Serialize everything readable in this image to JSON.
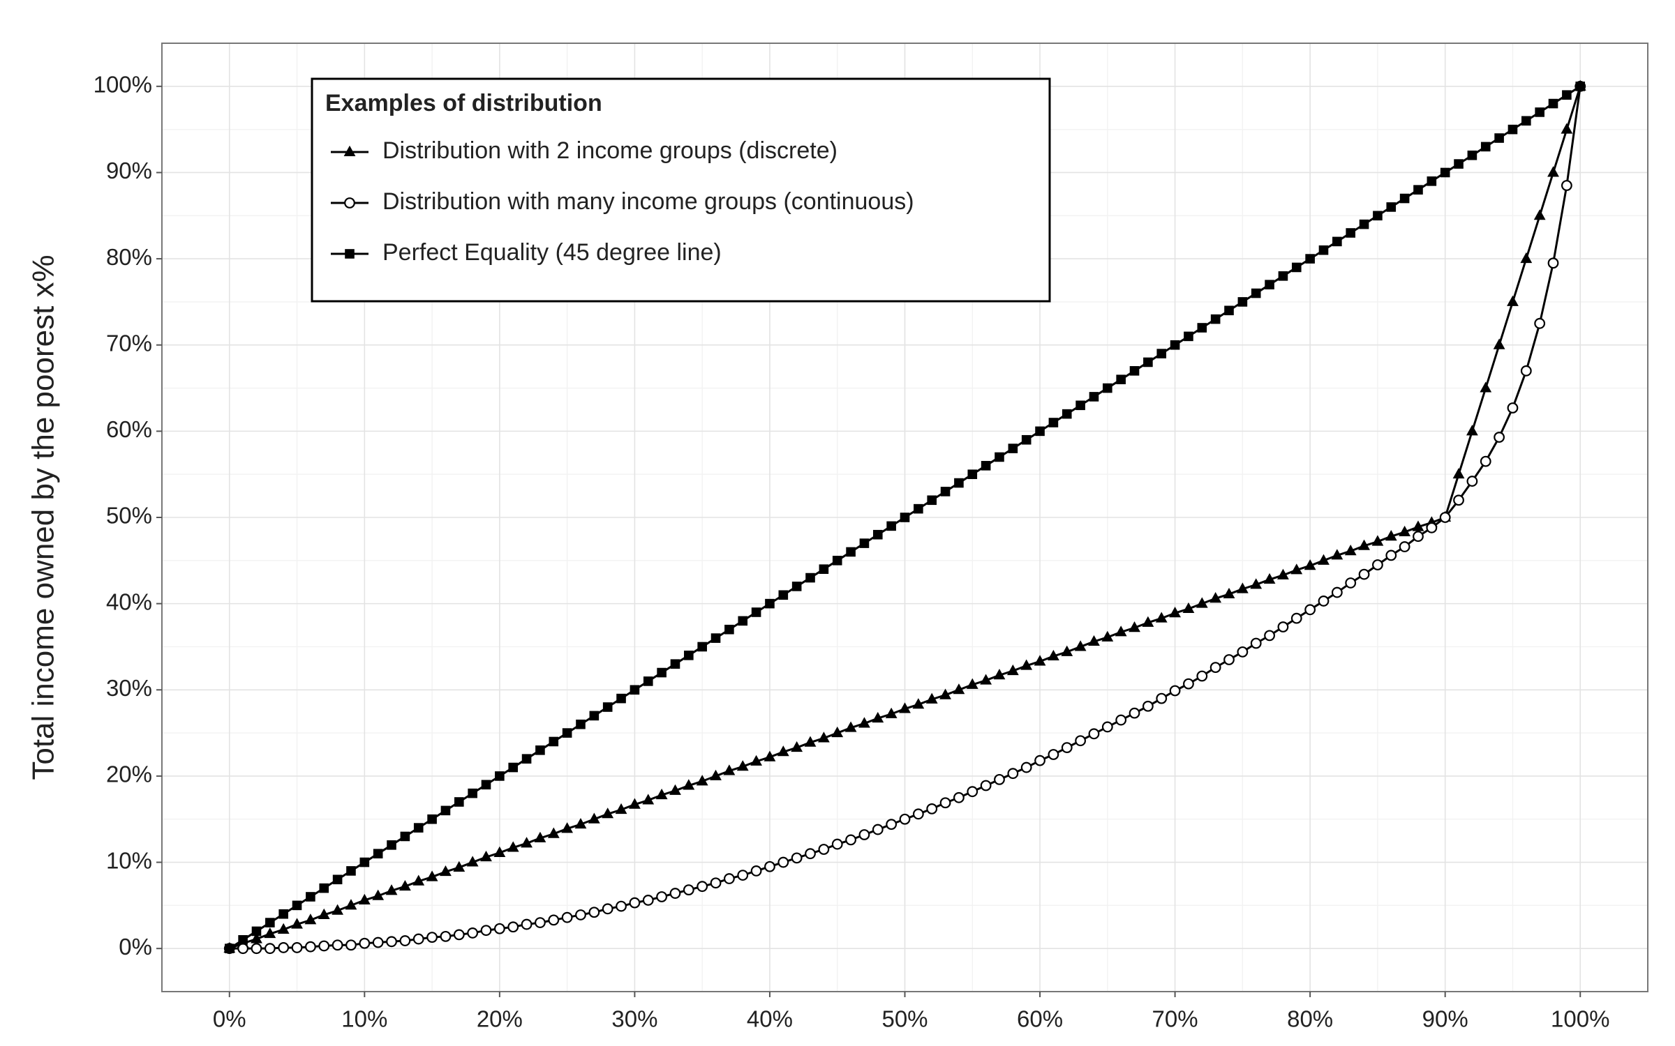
{
  "chart_data": {
    "type": "line",
    "ylabel": "Total income owned by the poorest x%",
    "legend_title": "Examples of distribution",
    "legend_position": "top-left",
    "grid": true,
    "xlim": [
      -5,
      105
    ],
    "ylim": [
      -5,
      105
    ],
    "xticks": [
      {
        "value": 0,
        "label": "0%"
      },
      {
        "value": 10,
        "label": "10%"
      },
      {
        "value": 20,
        "label": "20%"
      },
      {
        "value": 30,
        "label": "30%"
      },
      {
        "value": 40,
        "label": "40%"
      },
      {
        "value": 50,
        "label": "50%"
      },
      {
        "value": 60,
        "label": "60%"
      },
      {
        "value": 70,
        "label": "70%"
      },
      {
        "value": 80,
        "label": "80%"
      },
      {
        "value": 90,
        "label": "90%"
      },
      {
        "value": 100,
        "label": "100%"
      }
    ],
    "yticks": [
      {
        "value": 0,
        "label": "0%"
      },
      {
        "value": 10,
        "label": "10%"
      },
      {
        "value": 20,
        "label": "20%"
      },
      {
        "value": 30,
        "label": "30%"
      },
      {
        "value": 40,
        "label": "40%"
      },
      {
        "value": 50,
        "label": "50%"
      },
      {
        "value": 60,
        "label": "60%"
      },
      {
        "value": 70,
        "label": "70%"
      },
      {
        "value": 80,
        "label": "80%"
      },
      {
        "value": 90,
        "label": "90%"
      },
      {
        "value": 100,
        "label": "100%"
      }
    ],
    "x": [
      0,
      1,
      2,
      3,
      4,
      5,
      6,
      7,
      8,
      9,
      10,
      11,
      12,
      13,
      14,
      15,
      16,
      17,
      18,
      19,
      20,
      21,
      22,
      23,
      24,
      25,
      26,
      27,
      28,
      29,
      30,
      31,
      32,
      33,
      34,
      35,
      36,
      37,
      38,
      39,
      40,
      41,
      42,
      43,
      44,
      45,
      46,
      47,
      48,
      49,
      50,
      51,
      52,
      53,
      54,
      55,
      56,
      57,
      58,
      59,
      60,
      61,
      62,
      63,
      64,
      65,
      66,
      67,
      68,
      69,
      70,
      71,
      72,
      73,
      74,
      75,
      76,
      77,
      78,
      79,
      80,
      81,
      82,
      83,
      84,
      85,
      86,
      87,
      88,
      89,
      90,
      91,
      92,
      93,
      94,
      95,
      96,
      97,
      98,
      99,
      100
    ],
    "series": [
      {
        "name": "Distribution with 2 income groups (discrete)",
        "color": "#000000",
        "marker": "triangle",
        "values": [
          0,
          0.6,
          1.1,
          1.7,
          2.2,
          2.8,
          3.3,
          3.9,
          4.4,
          5,
          5.6,
          6.1,
          6.7,
          7.2,
          7.8,
          8.3,
          8.9,
          9.4,
          10,
          10.6,
          11.1,
          11.7,
          12.2,
          12.8,
          13.3,
          13.9,
          14.4,
          15,
          15.6,
          16.1,
          16.7,
          17.2,
          17.8,
          18.3,
          18.9,
          19.4,
          20,
          20.6,
          21.1,
          21.7,
          22.2,
          22.8,
          23.3,
          23.9,
          24.4,
          25,
          25.6,
          26.1,
          26.7,
          27.2,
          27.8,
          28.3,
          28.9,
          29.4,
          30,
          30.6,
          31.1,
          31.7,
          32.2,
          32.8,
          33.3,
          33.9,
          34.4,
          35,
          35.6,
          36.1,
          36.7,
          37.2,
          37.8,
          38.3,
          38.9,
          39.4,
          40,
          40.6,
          41.1,
          41.7,
          42.2,
          42.8,
          43.3,
          43.9,
          44.4,
          45,
          45.6,
          46.1,
          46.7,
          47.2,
          47.8,
          48.3,
          48.9,
          49.4,
          50,
          55,
          60,
          65,
          70,
          75,
          80,
          85,
          90,
          95,
          100
        ]
      },
      {
        "name": "Distribution with many income groups (continuous)",
        "color": "#000000",
        "marker": "circle",
        "values": [
          0,
          0,
          0,
          0,
          0.1,
          0.1,
          0.2,
          0.3,
          0.4,
          0.4,
          0.6,
          0.7,
          0.8,
          0.9,
          1.1,
          1.3,
          1.4,
          1.6,
          1.8,
          2.1,
          2.3,
          2.5,
          2.8,
          3,
          3.3,
          3.6,
          3.9,
          4.2,
          4.6,
          4.9,
          5.3,
          5.6,
          6,
          6.4,
          6.8,
          7.2,
          7.6,
          8.1,
          8.5,
          9,
          9.5,
          10,
          10.5,
          11,
          11.5,
          12.1,
          12.6,
          13.2,
          13.8,
          14.4,
          15,
          15.6,
          16.2,
          16.9,
          17.5,
          18.2,
          18.9,
          19.6,
          20.3,
          21,
          21.8,
          22.5,
          23.3,
          24.1,
          24.9,
          25.7,
          26.5,
          27.3,
          28.1,
          29,
          29.9,
          30.7,
          31.6,
          32.6,
          33.5,
          34.4,
          35.4,
          36.3,
          37.3,
          38.3,
          39.3,
          40.3,
          41.3,
          42.4,
          43.4,
          44.5,
          45.6,
          46.6,
          47.8,
          48.8,
          50,
          52,
          54.2,
          56.5,
          59.3,
          62.7,
          67,
          72.5,
          79.5,
          88.5,
          100
        ]
      },
      {
        "name": "Perfect Equality (45 degree line)",
        "color": "#000000",
        "marker": "square",
        "values": [
          0,
          1,
          2,
          3,
          4,
          5,
          6,
          7,
          8,
          9,
          10,
          11,
          12,
          13,
          14,
          15,
          16,
          17,
          18,
          19,
          20,
          21,
          22,
          23,
          24,
          25,
          26,
          27,
          28,
          29,
          30,
          31,
          32,
          33,
          34,
          35,
          36,
          37,
          38,
          39,
          40,
          41,
          42,
          43,
          44,
          45,
          46,
          47,
          48,
          49,
          50,
          51,
          52,
          53,
          54,
          55,
          56,
          57,
          58,
          59,
          60,
          61,
          62,
          63,
          64,
          65,
          66,
          67,
          68,
          69,
          70,
          71,
          72,
          73,
          74,
          75,
          76,
          77,
          78,
          79,
          80,
          81,
          82,
          83,
          84,
          85,
          86,
          87,
          88,
          89,
          90,
          91,
          92,
          93,
          94,
          95,
          96,
          97,
          98,
          99,
          100
        ]
      }
    ]
  }
}
